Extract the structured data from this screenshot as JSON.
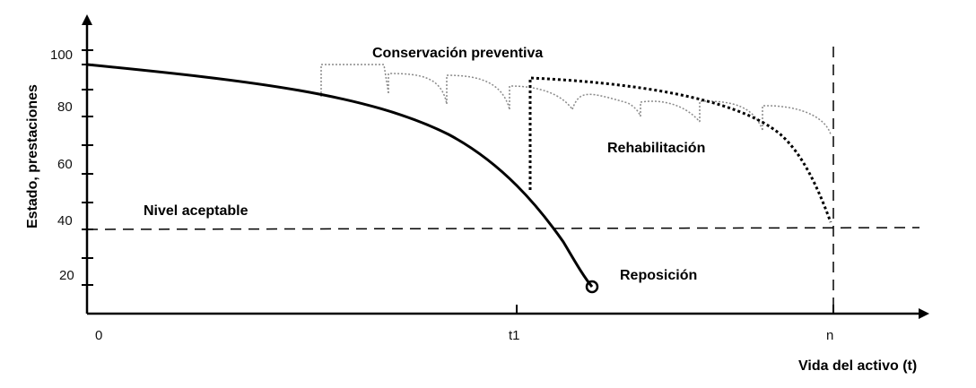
{
  "diagram": {
    "y_axis_title": "Estado, prestaciones",
    "x_axis_title": "Vida del activo (t)",
    "y_ticks": [
      "100",
      "80",
      "60",
      "40",
      "20"
    ],
    "x_ticks": [
      "0",
      "t1",
      "n"
    ],
    "labels": {
      "preventive": "Conservación preventiva",
      "rehabilitation": "Rehabilitación",
      "acceptable": "Nivel aceptable",
      "replacement": "Reposición"
    },
    "colors": {
      "ink": "#000000",
      "preventive_line": "#8a8a8a"
    }
  }
}
